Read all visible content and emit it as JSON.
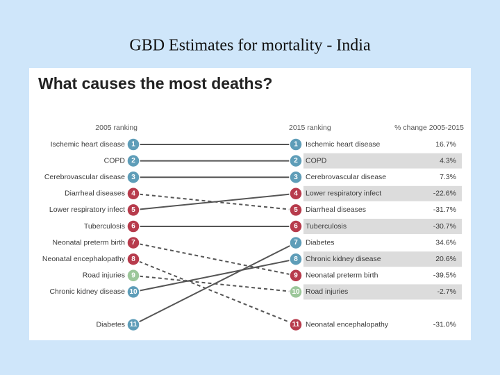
{
  "slide_title": "GBD Estimates for mortality - India",
  "chart_title": "What causes the most deaths?",
  "left": {
    "header": "2005 ranking",
    "items": [
      {
        "rank": 1,
        "cause": "Ischemic heart disease",
        "color": "#5e9db8"
      },
      {
        "rank": 2,
        "cause": "COPD",
        "color": "#5e9db8"
      },
      {
        "rank": 3,
        "cause": "Cerebrovascular disease",
        "color": "#5e9db8"
      },
      {
        "rank": 4,
        "cause": "Diarrheal diseases",
        "color": "#b73b4c"
      },
      {
        "rank": 5,
        "cause": "Lower respiratory infect",
        "color": "#b73b4c"
      },
      {
        "rank": 6,
        "cause": "Tuberculosis",
        "color": "#b73b4c"
      },
      {
        "rank": 7,
        "cause": "Neonatal preterm birth",
        "color": "#b73b4c"
      },
      {
        "rank": 8,
        "cause": "Neonatal encephalopathy",
        "color": "#b73b4c"
      },
      {
        "rank": 9,
        "cause": "Road injuries",
        "color": "#9cc79a"
      },
      {
        "rank": 10,
        "cause": "Chronic kidney disease",
        "color": "#5e9db8"
      },
      {
        "rank": 11,
        "cause": "Diabetes",
        "color": "#5e9db8"
      }
    ]
  },
  "right": {
    "header": "2015 ranking",
    "change_header": "% change 2005-2015",
    "items": [
      {
        "rank": 1,
        "cause": "Ischemic heart disease",
        "change": "16.7%",
        "color": "#5e9db8"
      },
      {
        "rank": 2,
        "cause": "COPD",
        "change": "4.3%",
        "color": "#5e9db8"
      },
      {
        "rank": 3,
        "cause": "Cerebrovascular disease",
        "change": "7.3%",
        "color": "#5e9db8"
      },
      {
        "rank": 4,
        "cause": "Lower respiratory infect",
        "change": "-22.6%",
        "color": "#b73b4c"
      },
      {
        "rank": 5,
        "cause": "Diarrheal diseases",
        "change": "-31.7%",
        "color": "#b73b4c"
      },
      {
        "rank": 6,
        "cause": "Tuberculosis",
        "change": "-30.7%",
        "color": "#b73b4c"
      },
      {
        "rank": 7,
        "cause": "Diabetes",
        "change": "34.6%",
        "color": "#5e9db8"
      },
      {
        "rank": 8,
        "cause": "Chronic kidney disease",
        "change": "20.6%",
        "color": "#5e9db8"
      },
      {
        "rank": 9,
        "cause": "Neonatal preterm birth",
        "change": "-39.5%",
        "color": "#b73b4c"
      },
      {
        "rank": 10,
        "cause": "Road injuries",
        "change": "-2.7%",
        "color": "#9cc79a"
      },
      {
        "rank": 11,
        "cause": "Neonatal encephalopathy",
        "change": "-31.0%",
        "color": "#b73b4c"
      }
    ]
  }
}
